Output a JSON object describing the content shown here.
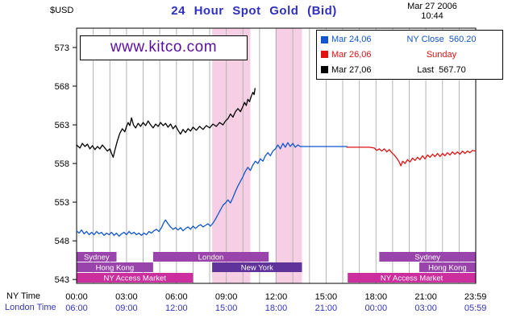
{
  "header": {
    "currency_label": "$USD",
    "title": "24 Hour Spot Gold (Bid)",
    "date": "Mar 27 2006",
    "time": "10:44"
  },
  "watermark": {
    "text": "www.kitco.com"
  },
  "legend": {
    "position": "top-right",
    "items": [
      {
        "label": "Mar 24,06",
        "desc": "NY Close  560.20",
        "color": "#1155cc"
      },
      {
        "label": "Mar 26,06",
        "desc": "Sunday",
        "color": "#e01212"
      },
      {
        "label": "Mar 27,06",
        "desc": "Last  567.70",
        "color": "#000000"
      }
    ]
  },
  "axes": {
    "x_row1_caption": "NY Time",
    "x_row2_caption": "London Time"
  },
  "colors": {
    "title": "#3030c0",
    "watermark": "#5a0f9e",
    "london_row": "#3434bb",
    "grid": "#b3b3b3",
    "band": "#f6cfe4"
  },
  "chart_data": {
    "type": "line",
    "title": "24 Hour Spot Gold (Bid)",
    "ylabel": "$USD",
    "ylim": [
      542.5,
      575.5
    ],
    "yticks": [
      543,
      548,
      553,
      558,
      563,
      568,
      573
    ],
    "grid": "hourly-vertical",
    "x_hours_range": [
      0,
      24
    ],
    "x_ticks": [
      {
        "hour": 0,
        "ny": "00:00",
        "london": "06:00"
      },
      {
        "hour": 3,
        "ny": "03:00",
        "london": "09:00"
      },
      {
        "hour": 6,
        "ny": "06:00",
        "london": "12:00"
      },
      {
        "hour": 9,
        "ny": "09:00",
        "london": "15:00"
      },
      {
        "hour": 12,
        "ny": "12:00",
        "london": "18:00"
      },
      {
        "hour": 15,
        "ny": "15:00",
        "london": "21:00"
      },
      {
        "hour": 18,
        "ny": "18:00",
        "london": "00:00"
      },
      {
        "hour": 21,
        "ny": "21:00",
        "london": "03:00"
      },
      {
        "hour": 23.983,
        "ny": "23:59",
        "london": "05:59"
      }
    ],
    "shaded_bands": [
      {
        "start_hour": 8.15,
        "end_hour": 10.45
      },
      {
        "start_hour": 11.95,
        "end_hour": 13.55
      }
    ],
    "session_bars": [
      {
        "label": "Sydney",
        "row": 0,
        "start_hour": 0,
        "end_hour": 2.4,
        "color": "#9944aa"
      },
      {
        "label": "London",
        "row": 0,
        "start_hour": 4.6,
        "end_hour": 11.55,
        "color": "#9944aa"
      },
      {
        "label": "Sydney",
        "row": 0,
        "start_hour": 18.2,
        "end_hour": 24,
        "color": "#9944aa"
      },
      {
        "label": "Hong Kong",
        "row": 1,
        "start_hour": 0,
        "end_hour": 4.6,
        "color": "#9944aa"
      },
      {
        "label": "New York",
        "row": 1,
        "start_hour": 8.15,
        "end_hour": 13.55,
        "color": "#5f3399"
      },
      {
        "label": "Hong Kong",
        "row": 1,
        "start_hour": 20.6,
        "end_hour": 24,
        "color": "#9944aa"
      },
      {
        "label": "NY Access Market",
        "row": 2,
        "start_hour": 0,
        "end_hour": 7.0,
        "color": "#cc2e9e"
      },
      {
        "label": "NY Access Market",
        "row": 2,
        "start_hour": 16.3,
        "end_hour": 24,
        "color": "#cc2e9e"
      }
    ],
    "series": [
      {
        "name": "Mar 24,06",
        "color": "#1155cc",
        "points": [
          [
            0,
            549.3
          ],
          [
            0.15,
            549.0
          ],
          [
            0.3,
            549.4
          ],
          [
            0.45,
            548.9
          ],
          [
            0.6,
            549.2
          ],
          [
            0.75,
            548.8
          ],
          [
            0.9,
            549.1
          ],
          [
            1.05,
            548.8
          ],
          [
            1.2,
            549.2
          ],
          [
            1.35,
            548.9
          ],
          [
            1.5,
            549.1
          ],
          [
            1.65,
            548.7
          ],
          [
            1.8,
            549.0
          ],
          [
            1.95,
            548.8
          ],
          [
            2.1,
            549.1
          ],
          [
            2.25,
            548.7
          ],
          [
            2.4,
            549.0
          ],
          [
            2.55,
            548.6
          ],
          [
            2.7,
            548.9
          ],
          [
            2.85,
            549.1
          ],
          [
            3.0,
            548.8
          ],
          [
            3.15,
            549.2
          ],
          [
            3.3,
            548.9
          ],
          [
            3.45,
            549.1
          ],
          [
            3.6,
            548.8
          ],
          [
            3.75,
            549.0
          ],
          [
            3.9,
            548.7
          ],
          [
            4.05,
            549.0
          ],
          [
            4.2,
            548.8
          ],
          [
            4.35,
            549.2
          ],
          [
            4.5,
            549.0
          ],
          [
            4.65,
            549.3
          ],
          [
            4.8,
            549.5
          ],
          [
            4.95,
            549.2
          ],
          [
            5.1,
            549.7
          ],
          [
            5.25,
            550.4
          ],
          [
            5.35,
            550.7
          ],
          [
            5.5,
            550.2
          ],
          [
            5.65,
            549.8
          ],
          [
            5.8,
            549.5
          ],
          [
            5.95,
            549.7
          ],
          [
            6.1,
            549.4
          ],
          [
            6.25,
            549.7
          ],
          [
            6.4,
            549.3
          ],
          [
            6.55,
            549.6
          ],
          [
            6.7,
            549.8
          ],
          [
            6.85,
            549.5
          ],
          [
            7.0,
            549.9
          ],
          [
            7.15,
            549.6
          ],
          [
            7.3,
            549.9
          ],
          [
            7.45,
            550.1
          ],
          [
            7.6,
            549.8
          ],
          [
            7.75,
            550.0
          ],
          [
            7.9,
            550.2
          ],
          [
            8.05,
            549.9
          ],
          [
            8.2,
            550.3
          ],
          [
            8.35,
            550.8
          ],
          [
            8.5,
            551.4
          ],
          [
            8.65,
            552.0
          ],
          [
            8.8,
            552.6
          ],
          [
            8.95,
            552.9
          ],
          [
            9.1,
            553.3
          ],
          [
            9.25,
            552.9
          ],
          [
            9.4,
            553.6
          ],
          [
            9.55,
            554.4
          ],
          [
            9.7,
            555.1
          ],
          [
            9.85,
            555.7
          ],
          [
            10.0,
            556.3
          ],
          [
            10.15,
            557.0
          ],
          [
            10.3,
            557.5
          ],
          [
            10.45,
            557.1
          ],
          [
            10.6,
            557.8
          ],
          [
            10.75,
            558.3
          ],
          [
            10.9,
            558.0
          ],
          [
            11.05,
            558.6
          ],
          [
            11.2,
            558.3
          ],
          [
            11.35,
            559.0
          ],
          [
            11.5,
            559.4
          ],
          [
            11.65,
            559.0
          ],
          [
            11.8,
            559.6
          ],
          [
            11.95,
            559.9
          ],
          [
            12.1,
            560.4
          ],
          [
            12.25,
            559.9
          ],
          [
            12.4,
            560.6
          ],
          [
            12.55,
            560.1
          ],
          [
            12.7,
            560.7
          ],
          [
            12.85,
            560.2
          ],
          [
            13.0,
            560.6
          ],
          [
            13.15,
            560.1
          ],
          [
            13.3,
            560.4
          ],
          [
            13.45,
            560.2
          ],
          [
            13.6,
            560.2
          ],
          [
            16.25,
            560.2
          ]
        ]
      },
      {
        "name": "Mar 26,06",
        "color": "#e01212",
        "points": [
          [
            16.25,
            560.1
          ],
          [
            17.0,
            560.1
          ],
          [
            17.6,
            560.1
          ],
          [
            17.9,
            560.0
          ],
          [
            18.05,
            559.7
          ],
          [
            18.2,
            559.9
          ],
          [
            18.35,
            559.6
          ],
          [
            18.5,
            559.9
          ],
          [
            18.65,
            559.5
          ],
          [
            18.8,
            559.8
          ],
          [
            18.95,
            559.4
          ],
          [
            19.1,
            559.1
          ],
          [
            19.25,
            558.7
          ],
          [
            19.4,
            558.2
          ],
          [
            19.5,
            557.7
          ],
          [
            19.6,
            558.3
          ],
          [
            19.75,
            558.0
          ],
          [
            19.9,
            558.5
          ],
          [
            20.05,
            558.2
          ],
          [
            20.2,
            558.7
          ],
          [
            20.35,
            558.4
          ],
          [
            20.5,
            558.8
          ],
          [
            20.65,
            558.5
          ],
          [
            20.8,
            559.0
          ],
          [
            20.95,
            558.6
          ],
          [
            21.1,
            559.1
          ],
          [
            21.25,
            558.8
          ],
          [
            21.4,
            559.2
          ],
          [
            21.55,
            558.9
          ],
          [
            21.7,
            559.3
          ],
          [
            21.85,
            558.9
          ],
          [
            22.0,
            559.3
          ],
          [
            22.15,
            559.0
          ],
          [
            22.3,
            559.4
          ],
          [
            22.45,
            559.1
          ],
          [
            22.6,
            559.5
          ],
          [
            22.75,
            559.2
          ],
          [
            22.9,
            559.5
          ],
          [
            23.05,
            559.2
          ],
          [
            23.2,
            559.6
          ],
          [
            23.35,
            559.3
          ],
          [
            23.5,
            559.6
          ],
          [
            23.65,
            559.4
          ],
          [
            23.8,
            559.7
          ],
          [
            23.98,
            559.6
          ]
        ]
      },
      {
        "name": "Mar 27,06",
        "color": "#000000",
        "points": [
          [
            0,
            560.4
          ],
          [
            0.2,
            560.0
          ],
          [
            0.35,
            560.6
          ],
          [
            0.5,
            560.2
          ],
          [
            0.65,
            560.5
          ],
          [
            0.8,
            559.9
          ],
          [
            0.95,
            560.3
          ],
          [
            1.1,
            559.8
          ],
          [
            1.25,
            560.2
          ],
          [
            1.4,
            559.9
          ],
          [
            1.55,
            560.4
          ],
          [
            1.7,
            560.0
          ],
          [
            1.85,
            559.6
          ],
          [
            2.0,
            559.9
          ],
          [
            2.1,
            559.3
          ],
          [
            2.2,
            558.8
          ],
          [
            2.3,
            559.7
          ],
          [
            2.45,
            560.9
          ],
          [
            2.6,
            561.9
          ],
          [
            2.75,
            562.5
          ],
          [
            2.9,
            562.1
          ],
          [
            3.0,
            562.8
          ],
          [
            3.1,
            563.3
          ],
          [
            3.2,
            562.9
          ],
          [
            3.3,
            563.9
          ],
          [
            3.42,
            563.0
          ],
          [
            3.55,
            562.6
          ],
          [
            3.7,
            563.2
          ],
          [
            3.85,
            562.8
          ],
          [
            4.0,
            563.3
          ],
          [
            4.15,
            562.9
          ],
          [
            4.3,
            563.5
          ],
          [
            4.45,
            563.0
          ],
          [
            4.6,
            562.6
          ],
          [
            4.75,
            563.1
          ],
          [
            4.9,
            562.8
          ],
          [
            5.05,
            563.3
          ],
          [
            5.2,
            562.9
          ],
          [
            5.35,
            563.2
          ],
          [
            5.5,
            562.7
          ],
          [
            5.65,
            563.1
          ],
          [
            5.8,
            562.5
          ],
          [
            5.95,
            562.9
          ],
          [
            6.1,
            562.3
          ],
          [
            6.25,
            561.8
          ],
          [
            6.4,
            562.4
          ],
          [
            6.55,
            562.0
          ],
          [
            6.7,
            562.5
          ],
          [
            6.85,
            562.2
          ],
          [
            7.0,
            562.7
          ],
          [
            7.2,
            562.3
          ],
          [
            7.4,
            562.8
          ],
          [
            7.6,
            562.4
          ],
          [
            7.8,
            562.9
          ],
          [
            8.0,
            562.6
          ],
          [
            8.2,
            563.1
          ],
          [
            8.4,
            562.8
          ],
          [
            8.6,
            563.3
          ],
          [
            8.8,
            563.0
          ],
          [
            8.95,
            563.5
          ],
          [
            9.1,
            563.8
          ],
          [
            9.25,
            564.4
          ],
          [
            9.4,
            564.0
          ],
          [
            9.55,
            564.7
          ],
          [
            9.7,
            565.1
          ],
          [
            9.85,
            564.7
          ],
          [
            10.0,
            565.4
          ],
          [
            10.1,
            565.9
          ],
          [
            10.2,
            565.5
          ],
          [
            10.3,
            566.3
          ],
          [
            10.4,
            566.0
          ],
          [
            10.5,
            566.7
          ],
          [
            10.6,
            567.2
          ],
          [
            10.67,
            566.9
          ],
          [
            10.73,
            567.7
          ]
        ]
      }
    ]
  }
}
